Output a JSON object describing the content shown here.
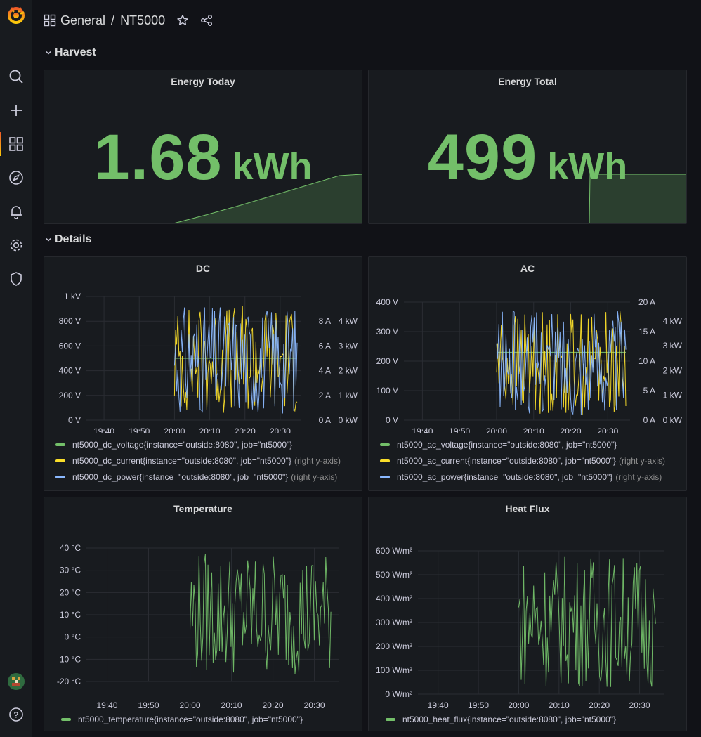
{
  "breadcrumb": {
    "folder": "General",
    "separator": "/",
    "dashboard": "NT5000"
  },
  "sidebar": {
    "items": [
      {
        "name": "search-icon"
      },
      {
        "name": "plus-icon"
      },
      {
        "name": "dashboards-icon"
      },
      {
        "name": "compass-icon"
      },
      {
        "name": "bell-icon"
      },
      {
        "name": "gear-icon"
      },
      {
        "name": "shield-icon"
      }
    ]
  },
  "rows": {
    "harvest": "Harvest",
    "details": "Details"
  },
  "stats": {
    "energy_today": {
      "title": "Energy Today",
      "value": "1.68",
      "unit": "kWh"
    },
    "energy_total": {
      "title": "Energy Total",
      "value": "499",
      "unit": "kWh"
    }
  },
  "colors": {
    "green": "#73bf69",
    "yellow": "#fade2a",
    "blue": "#8ab8ff"
  },
  "chart_data": [
    {
      "id": "dc",
      "type": "line",
      "title": "DC",
      "x_ticks": [
        "19:40",
        "19:50",
        "20:00",
        "20:10",
        "20:20",
        "20:30"
      ],
      "left_ticks": [
        "0 V",
        "200 V",
        "400 V",
        "600 V",
        "800 V",
        "1 kV"
      ],
      "right_ticks_1": [
        "0 A",
        "2 A",
        "4 A",
        "6 A",
        "8 A"
      ],
      "right_ticks_2": [
        "0 kW",
        "1 kW",
        "2 kW",
        "3 kW",
        "4 kW"
      ],
      "ylim_left": [
        0,
        1000
      ],
      "ylim_right_1": [
        0,
        8
      ],
      "ylim_right_2": [
        0,
        4000
      ],
      "data_start": "20:00",
      "data_end": "20:36",
      "series": [
        {
          "name": "nt5000_dc_voltage{instance=\"outside:8080\", job=\"nt5000\"}",
          "axis": "left",
          "color": "#73bf69",
          "value": 500,
          "note": ""
        },
        {
          "name": "nt5000_dc_current{instance=\"outside:8080\", job=\"nt5000\"}",
          "axis": "right",
          "color": "#fade2a",
          "range": [
            0.2,
            9.0
          ],
          "note": "(right y-axis)"
        },
        {
          "name": "nt5000_dc_power{instance=\"outside:8080\", job=\"nt5000\"}",
          "axis": "right",
          "color": "#8ab8ff",
          "range": [
            0.1,
            4.3
          ],
          "note": "(right y-axis)"
        }
      ]
    },
    {
      "id": "ac",
      "type": "line",
      "title": "AC",
      "x_ticks": [
        "19:40",
        "19:50",
        "20:00",
        "20:10",
        "20:20",
        "20:30"
      ],
      "left_ticks": [
        "0 V",
        "100 V",
        "200 V",
        "300 V",
        "400 V"
      ],
      "right_ticks_1": [
        "0 A",
        "5 A",
        "10 A",
        "15 A",
        "20 A"
      ],
      "right_ticks_2": [
        "0 kW",
        "1 kW",
        "2 kW",
        "3 kW",
        "4 kW"
      ],
      "ylim_left": [
        0,
        400
      ],
      "ylim_right_1": [
        0,
        20
      ],
      "ylim_right_2": [
        0,
        4000
      ],
      "data_start": "20:00",
      "data_end": "20:36",
      "series": [
        {
          "name": "nt5000_ac_voltage{instance=\"outside:8080\", job=\"nt5000\"}",
          "axis": "left",
          "color": "#73bf69",
          "value": 230,
          "note": ""
        },
        {
          "name": "nt5000_ac_current{instance=\"outside:8080\", job=\"nt5000\"}",
          "axis": "right",
          "color": "#fade2a",
          "range": [
            1,
            20
          ],
          "note": "(right y-axis)"
        },
        {
          "name": "nt5000_ac_power{instance=\"outside:8080\", job=\"nt5000\"}",
          "axis": "right",
          "color": "#8ab8ff",
          "range": [
            0.1,
            4.0
          ],
          "note": "(right y-axis)"
        }
      ]
    },
    {
      "id": "temperature",
      "type": "line",
      "title": "Temperature",
      "x_ticks": [
        "19:40",
        "19:50",
        "20:00",
        "20:10",
        "20:20",
        "20:30"
      ],
      "left_ticks": [
        "-20 °C",
        "-10 °C",
        "0 °C",
        "10 °C",
        "20 °C",
        "30 °C",
        "40 °C"
      ],
      "ylim_left": [
        -20,
        40
      ],
      "data_start": "20:00",
      "data_end": "20:35",
      "series": [
        {
          "name": "nt5000_temperature{instance=\"outside:8080\", job=\"nt5000\"}",
          "axis": "left",
          "color": "#73bf69",
          "range": [
            -20,
            38
          ],
          "note": ""
        }
      ]
    },
    {
      "id": "heatflux",
      "type": "line",
      "title": "Heat Flux",
      "x_ticks": [
        "19:40",
        "19:50",
        "20:00",
        "20:10",
        "20:20",
        "20:30"
      ],
      "left_ticks": [
        "0 W/m²",
        "100 W/m²",
        "200 W/m²",
        "300 W/m²",
        "400 W/m²",
        "500 W/m²",
        "600 W/m²"
      ],
      "ylim_left": [
        0,
        600
      ],
      "data_start": "20:00",
      "data_end": "20:35",
      "series": [
        {
          "name": "nt5000_heat_flux{instance=\"outside:8080\", job=\"nt5000\"}",
          "axis": "left",
          "color": "#73bf69",
          "range": [
            0,
            590
          ],
          "note": ""
        }
      ]
    }
  ]
}
